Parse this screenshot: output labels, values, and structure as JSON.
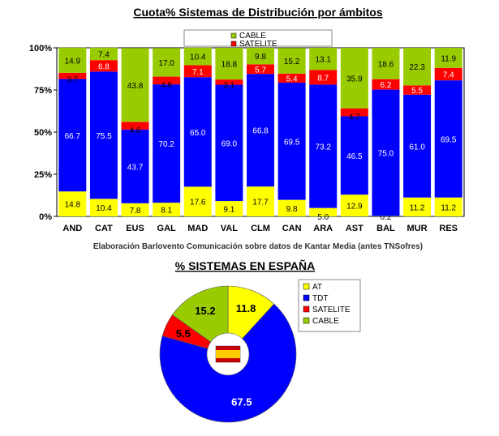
{
  "chart_data": [
    {
      "type": "bar",
      "stacked": true,
      "title": "Cuota% Sistemas de Distribución por ámbitos",
      "categories": [
        "AND",
        "CAT",
        "EUS",
        "GAL",
        "MAD",
        "VAL",
        "CLM",
        "CAN",
        "ARA",
        "AST",
        "BAL",
        "MUR",
        "RES"
      ],
      "series": [
        {
          "key": "AT",
          "values": [
            14.8,
            10.4,
            7.8,
            8.1,
            17.6,
            9.1,
            17.7,
            9.8,
            5.0,
            12.9,
            0.2,
            11.2,
            11.2
          ]
        },
        {
          "key": "TDT",
          "values": [
            66.7,
            75.5,
            43.7,
            70.2,
            65.0,
            69.0,
            66.8,
            69.5,
            73.2,
            46.5,
            75.0,
            61.0,
            69.5
          ]
        },
        {
          "key": "SATELITE",
          "name": "SATELITE",
          "values": [
            3.7,
            6.8,
            4.6,
            4.6,
            7.1,
            3.1,
            5.7,
            5.4,
            8.7,
            4.7,
            6.2,
            5.5,
            7.4
          ]
        },
        {
          "key": "CABLE",
          "name": "CABLE",
          "values": [
            14.9,
            7.4,
            43.8,
            17.0,
            10.4,
            18.8,
            9.8,
            15.2,
            13.1,
            35.9,
            18.6,
            22.3,
            11.9
          ]
        }
      ],
      "legend_entries": [
        "CABLE",
        "SATELITE"
      ],
      "ylim": [
        0,
        100
      ],
      "yticks": [
        "0%",
        "25%",
        "50%",
        "75%",
        "100%"
      ],
      "legend_position": "top",
      "grid": false,
      "note": "Elaboración Barlovento Comunicación sobre datos de Kantar Media (antes TNSofres)"
    },
    {
      "type": "pie",
      "title": "% SISTEMAS EN ESPAÑA",
      "labels": [
        "AT",
        "TDT",
        "SATELITE",
        "CABLE"
      ],
      "values": [
        11.8,
        67.5,
        5.5,
        15.2
      ],
      "legend_position": "right",
      "center_icon": "spain-flag-icon"
    }
  ],
  "colors": {
    "AT": "#ffff00",
    "TDT": "#0000ff",
    "SATELITE": "#ff0000",
    "CABLE": "#99cc00",
    "flag_red": "#cc0000",
    "flag_yellow": "#ffcc00"
  }
}
